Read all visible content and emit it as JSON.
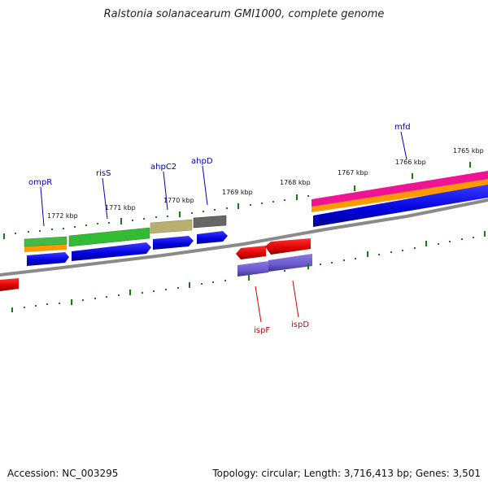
{
  "title": "Ralstonia solanacearum GMI1000, complete genome",
  "footer": {
    "accession": "Accession: NC_003295",
    "summary": "Topology: circular; Length: 3,716,413 bp; Genes: 3,501"
  },
  "ticks": [
    "1772 kbp",
    "1771 kbp",
    "1770 kbp",
    "1769 kbp",
    "1768 kbp",
    "1767 kbp",
    "1766 kbp",
    "1765 kbp"
  ],
  "genes_top": [
    "ompR",
    "risS",
    "ahpC2",
    "ahpD",
    "mfd"
  ],
  "genes_bottom": [
    "ispF",
    "ispD"
  ],
  "colors": {
    "backbone": "#8a8a8a",
    "tick": "#1a7a1a",
    "blue": "#0000ee",
    "green": "#33bb33",
    "orange": "#ff9900",
    "khaki": "#b8b070",
    "gray": "#666666",
    "red": "#ee0000",
    "purple": "#6a5acd",
    "magenta": "#ee1493",
    "label_top": "#0000aa",
    "label_bottom": "#cc0000"
  }
}
